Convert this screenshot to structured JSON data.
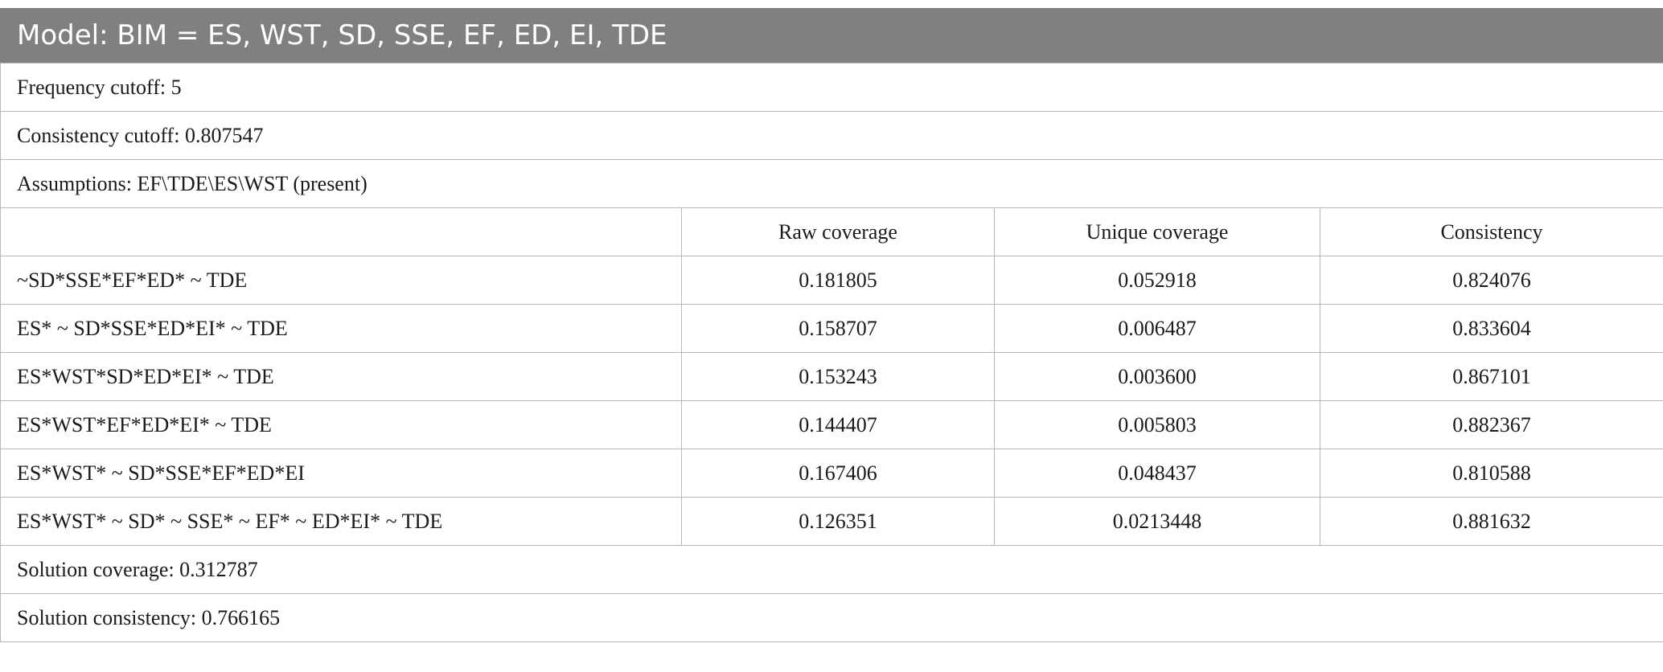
{
  "title": "Model: BIM = ES, WST, SD, SSE, EF, ED, EI, TDE",
  "info_rows": [
    "Frequency cutoff: 5",
    "Consistency cutoff: 0.807547",
    "Assumptions: EF\\TDE\\ES\\WST (present)"
  ],
  "columns": [
    "",
    "Raw coverage",
    "Unique coverage",
    "Consistency"
  ],
  "rows": [
    {
      "config": "~SD*SSE*EF*ED* ~ TDE",
      "raw": "0.181805",
      "unique": "0.052918",
      "consistency": "0.824076"
    },
    {
      "config": "ES* ~ SD*SSE*ED*EI* ~ TDE",
      "raw": "0.158707",
      "unique": "0.006487",
      "consistency": "0.833604"
    },
    {
      "config": "ES*WST*SD*ED*EI* ~ TDE",
      "raw": "0.153243",
      "unique": "0.003600",
      "consistency": "0.867101"
    },
    {
      "config": "ES*WST*EF*ED*EI* ~ TDE",
      "raw": "0.144407",
      "unique": "0.005803",
      "consistency": "0.882367"
    },
    {
      "config": "ES*WST* ~ SD*SSE*EF*ED*EI",
      "raw": "0.167406",
      "unique": "0.048437",
      "consistency": "0.810588"
    },
    {
      "config": "ES*WST* ~ SD* ~ SSE* ~ EF* ~ ED*EI* ~ TDE",
      "raw": "0.126351",
      "unique": "0.0213448",
      "consistency": "0.881632"
    }
  ],
  "footer_rows": [
    "Solution coverage: 0.312787",
    "Solution consistency: 0.766165"
  ],
  "colors": {
    "title_background": "#808080",
    "title_text": "#ffffff",
    "border": "#b8b8b8"
  }
}
